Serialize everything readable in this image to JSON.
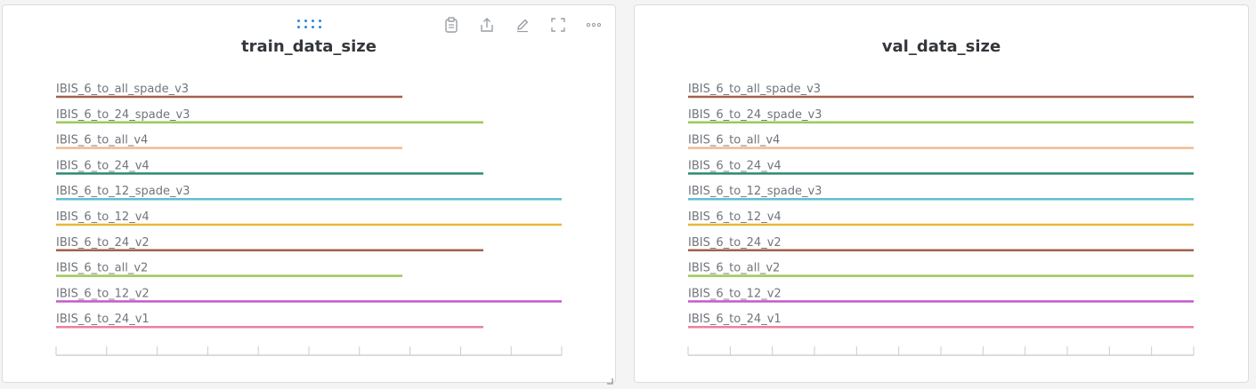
{
  "panels": [
    {
      "id": "panel-left",
      "title": "train_data_size",
      "toolbar": [
        "clipboard-icon",
        "share-icon",
        "edit-icon",
        "fullscreen-icon",
        "more-icon"
      ]
    },
    {
      "id": "panel-right",
      "title": "val_data_size",
      "toolbar": []
    }
  ],
  "chart_data": [
    {
      "type": "bar",
      "orientation": "horizontal",
      "title": "train_data_size",
      "xlabel": "",
      "ylabel": "",
      "grid": false,
      "categories": [
        "IBIS_6_to_all_spade_v3",
        "IBIS_6_to_24_spade_v3",
        "IBIS_6_to_all_v4",
        "IBIS_6_to_24_v4",
        "IBIS_6_to_12_spade_v3",
        "IBIS_6_to_12_v4",
        "IBIS_6_to_24_v2",
        "IBIS_6_to_all_v2",
        "IBIS_6_to_12_v2",
        "IBIS_6_to_24_v1"
      ],
      "values": [
        0.685,
        0.845,
        0.685,
        0.845,
        1.0,
        1.0,
        0.845,
        0.685,
        1.0,
        0.845
      ],
      "colors": [
        "#a0614a",
        "#9bc95b",
        "#f0bc8f",
        "#2b8a70",
        "#5fbfcf",
        "#e8b83a",
        "#a0614a",
        "#9bc95b",
        "#c45ac9",
        "#e8829f"
      ],
      "xlim": [
        0,
        1
      ],
      "x_ticks": 11
    },
    {
      "type": "bar",
      "orientation": "horizontal",
      "title": "val_data_size",
      "xlabel": "",
      "ylabel": "",
      "grid": false,
      "categories": [
        "IBIS_6_to_all_spade_v3",
        "IBIS_6_to_24_spade_v3",
        "IBIS_6_to_all_v4",
        "IBIS_6_to_24_v4",
        "IBIS_6_to_12_spade_v3",
        "IBIS_6_to_12_v4",
        "IBIS_6_to_24_v2",
        "IBIS_6_to_all_v2",
        "IBIS_6_to_12_v2",
        "IBIS_6_to_24_v1"
      ],
      "values": [
        1.0,
        1.0,
        1.0,
        1.0,
        1.0,
        1.0,
        1.0,
        1.0,
        1.0,
        1.0
      ],
      "colors": [
        "#a0614a",
        "#9bc95b",
        "#f0bc8f",
        "#2b8a70",
        "#5fbfcf",
        "#e8b83a",
        "#a0614a",
        "#9bc95b",
        "#c45ac9",
        "#e8829f"
      ],
      "xlim": [
        0,
        1
      ],
      "x_ticks": 13
    }
  ]
}
